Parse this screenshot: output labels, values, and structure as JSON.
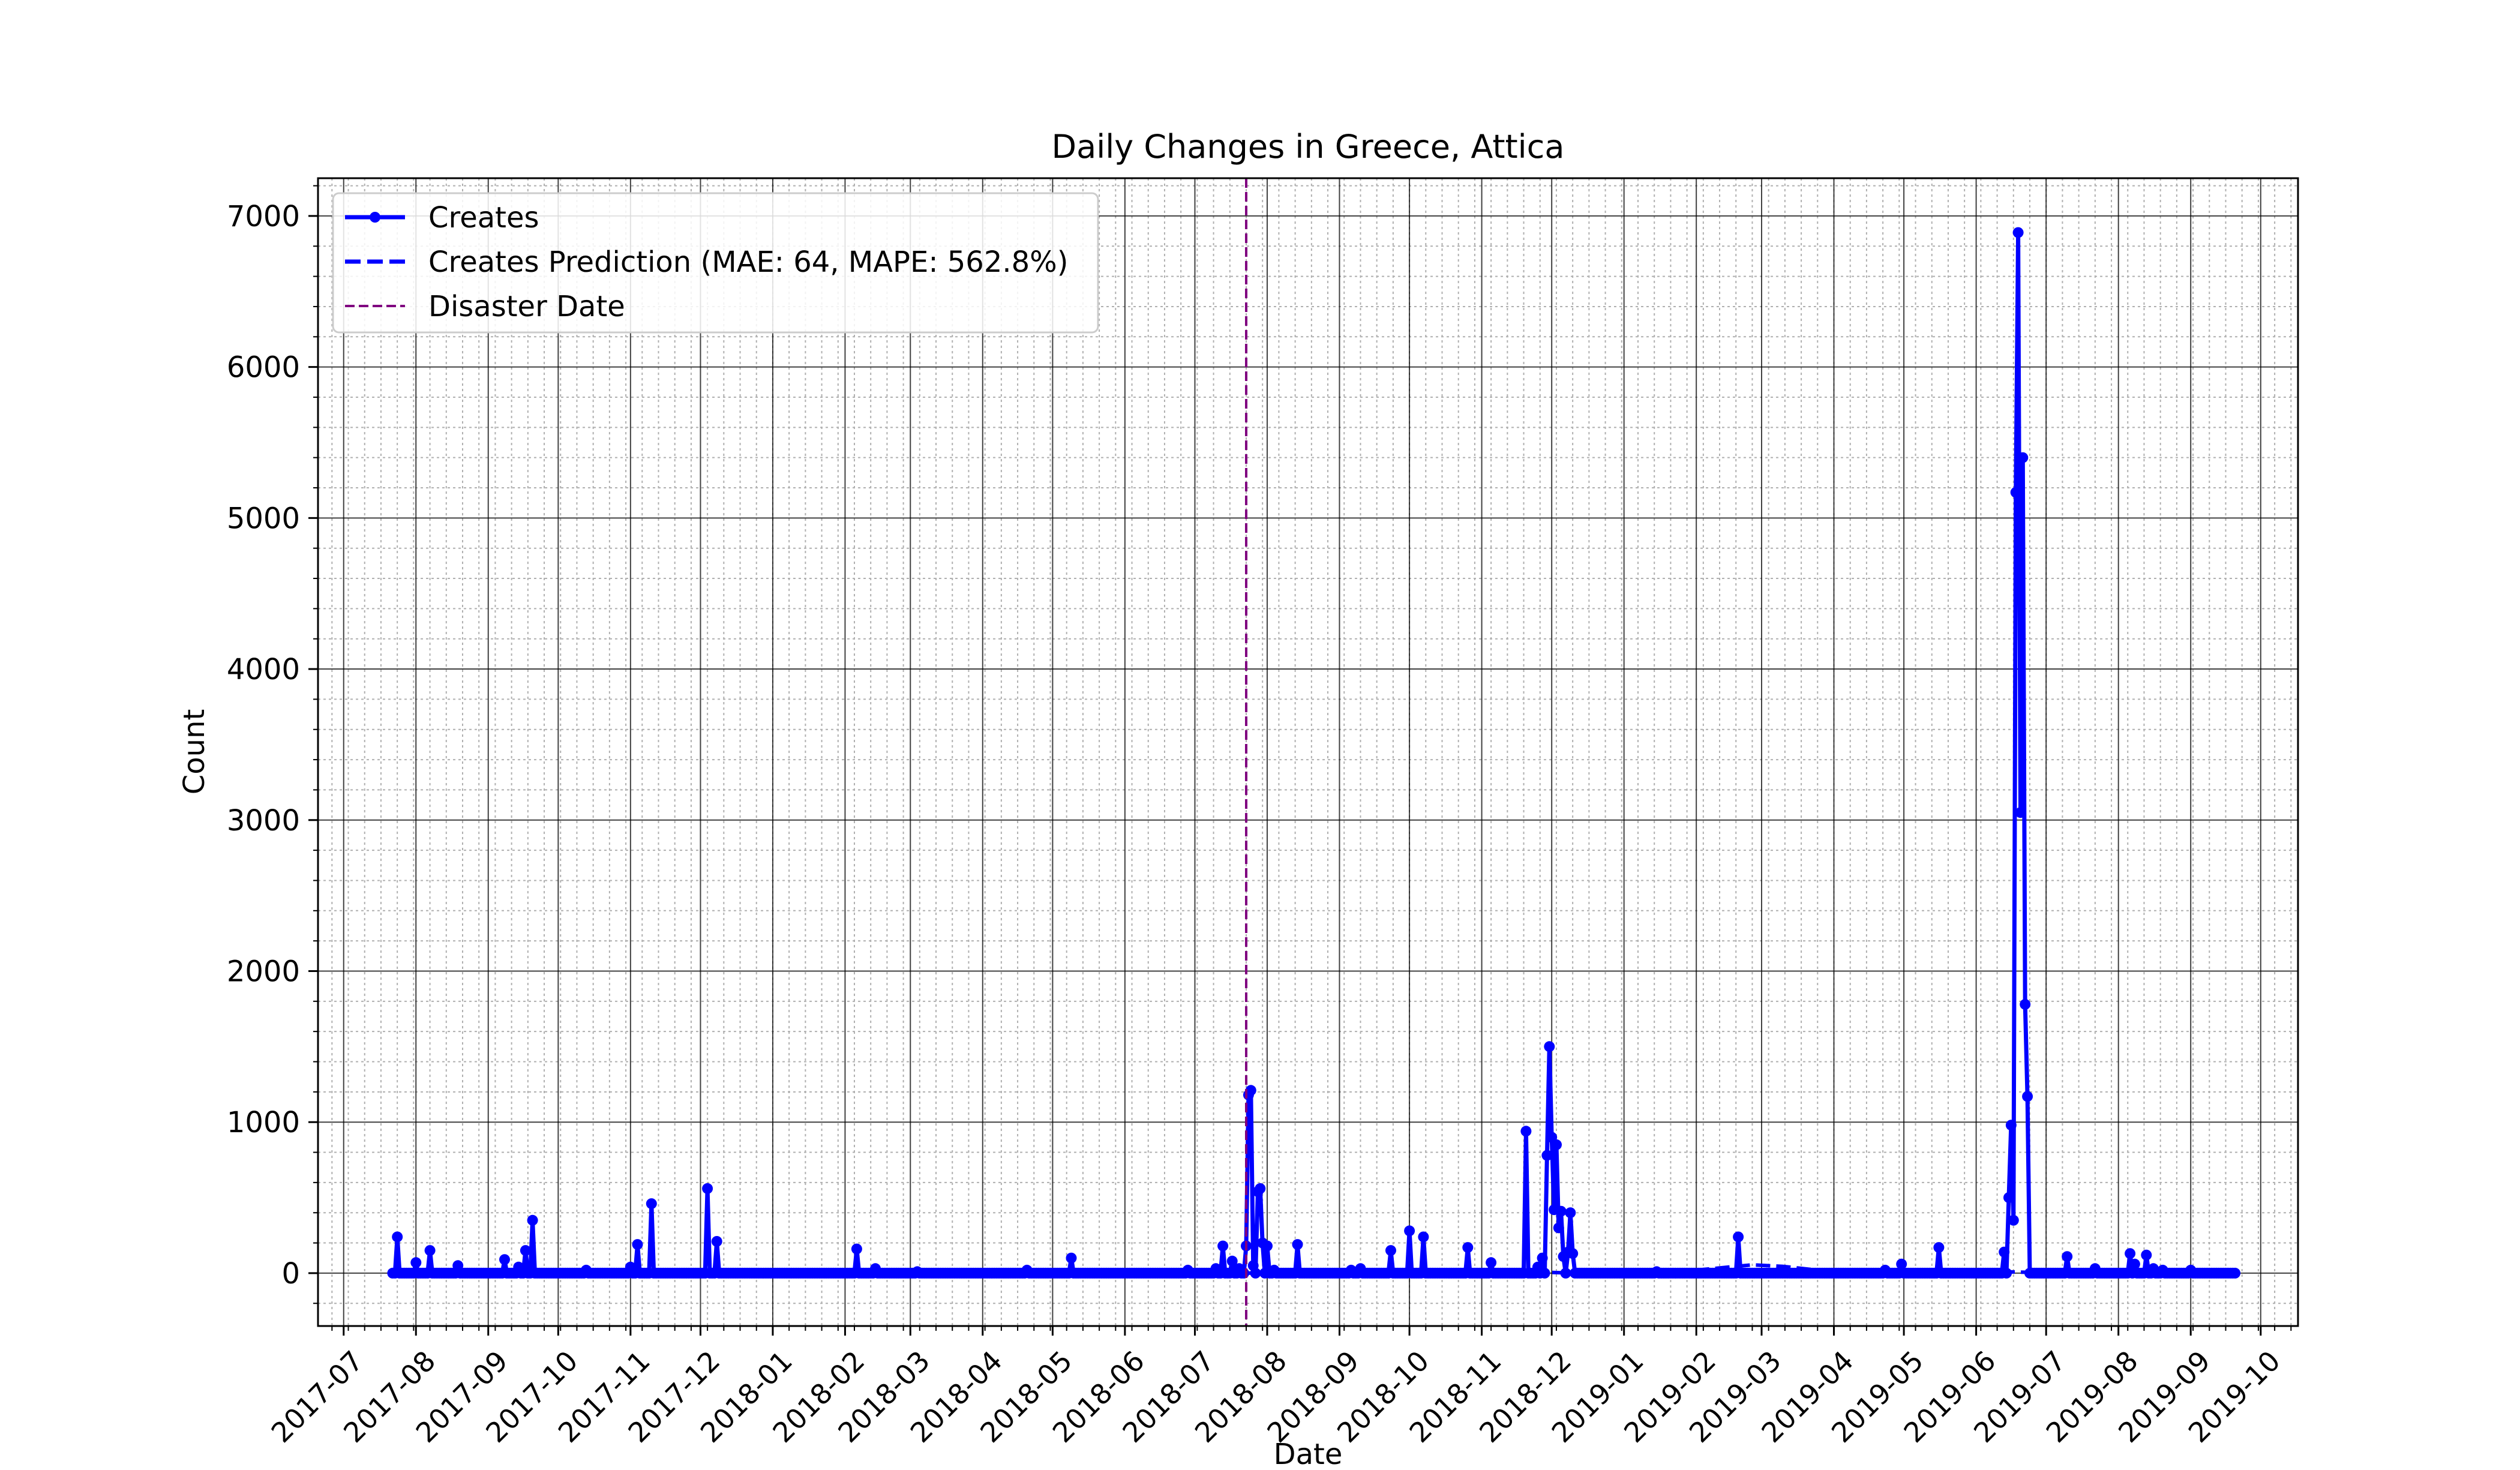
{
  "chart_data": {
    "type": "line",
    "title": "Daily Changes in Greece, Attica",
    "xlabel": "Date",
    "ylabel": "Count",
    "ylim": [
      -350,
      7250
    ],
    "xlim": [
      "2017-06-20",
      "2019-10-17"
    ],
    "yticks": [
      0,
      1000,
      2000,
      3000,
      4000,
      5000,
      6000,
      7000
    ],
    "xticks": [
      "2017-07",
      "2017-08",
      "2017-09",
      "2017-10",
      "2017-11",
      "2017-12",
      "2018-01",
      "2018-02",
      "2018-03",
      "2018-04",
      "2018-05",
      "2018-06",
      "2018-07",
      "2018-08",
      "2018-09",
      "2018-10",
      "2018-11",
      "2018-12",
      "2019-01",
      "2019-02",
      "2019-03",
      "2019-04",
      "2019-05",
      "2019-06",
      "2019-07",
      "2019-08",
      "2019-09",
      "2019-10"
    ],
    "grid": "major and minor",
    "legend_position": "upper left",
    "colors": {
      "series": "#0000ff",
      "disaster": "#800080",
      "grid_major": "#000000",
      "grid_minor": "#b0b0b0"
    },
    "series": [
      {
        "name": "Creates",
        "style": "solid line with dot markers",
        "range": [
          "2017-07-22",
          "2019-09-20"
        ],
        "baseline": 0,
        "points": [
          [
            "2017-07-24",
            240
          ],
          [
            "2017-08-01",
            70
          ],
          [
            "2017-08-07",
            150
          ],
          [
            "2017-08-19",
            50
          ],
          [
            "2017-09-08",
            90
          ],
          [
            "2017-09-14",
            40
          ],
          [
            "2017-09-17",
            150
          ],
          [
            "2017-09-20",
            350
          ],
          [
            "2017-10-13",
            20
          ],
          [
            "2017-11-01",
            40
          ],
          [
            "2017-11-04",
            190
          ],
          [
            "2017-11-10",
            460
          ],
          [
            "2017-12-04",
            560
          ],
          [
            "2017-12-08",
            210
          ],
          [
            "2018-02-06",
            160
          ],
          [
            "2018-02-14",
            30
          ],
          [
            "2018-03-04",
            10
          ],
          [
            "2018-04-20",
            20
          ],
          [
            "2018-05-09",
            100
          ],
          [
            "2018-06-28",
            20
          ],
          [
            "2018-07-10",
            30
          ],
          [
            "2018-07-13",
            180
          ],
          [
            "2018-07-17",
            80
          ],
          [
            "2018-07-20",
            30
          ],
          [
            "2018-07-23",
            180
          ],
          [
            "2018-07-24",
            1180
          ],
          [
            "2018-07-25",
            1210
          ],
          [
            "2018-07-26",
            50
          ],
          [
            "2018-07-28",
            540
          ],
          [
            "2018-07-29",
            560
          ],
          [
            "2018-07-30",
            200
          ],
          [
            "2018-08-01",
            180
          ],
          [
            "2018-08-04",
            20
          ],
          [
            "2018-08-14",
            190
          ],
          [
            "2018-09-06",
            20
          ],
          [
            "2018-09-10",
            30
          ],
          [
            "2018-09-23",
            150
          ],
          [
            "2018-10-01",
            280
          ],
          [
            "2018-10-07",
            240
          ],
          [
            "2018-10-26",
            170
          ],
          [
            "2018-11-05",
            70
          ],
          [
            "2018-11-20",
            940
          ],
          [
            "2018-11-25",
            40
          ],
          [
            "2018-11-27",
            100
          ],
          [
            "2018-11-29",
            780
          ],
          [
            "2018-11-30",
            1500
          ],
          [
            "2018-12-01",
            900
          ],
          [
            "2018-12-02",
            420
          ],
          [
            "2018-12-03",
            850
          ],
          [
            "2018-12-04",
            300
          ],
          [
            "2018-12-05",
            410
          ],
          [
            "2018-12-06",
            110
          ],
          [
            "2018-12-08",
            140
          ],
          [
            "2018-12-09",
            400
          ],
          [
            "2018-12-10",
            130
          ],
          [
            "2019-01-15",
            10
          ],
          [
            "2019-02-19",
            240
          ],
          [
            "2019-04-23",
            20
          ],
          [
            "2019-04-30",
            60
          ],
          [
            "2019-05-16",
            170
          ],
          [
            "2019-06-13",
            140
          ],
          [
            "2019-06-15",
            500
          ],
          [
            "2019-06-16",
            980
          ],
          [
            "2019-06-17",
            350
          ],
          [
            "2019-06-18",
            5170
          ],
          [
            "2019-06-19",
            6890
          ],
          [
            "2019-06-20",
            3050
          ],
          [
            "2019-06-21",
            5400
          ],
          [
            "2019-06-22",
            1780
          ],
          [
            "2019-06-23",
            1170
          ],
          [
            "2019-07-10",
            110
          ],
          [
            "2019-07-22",
            30
          ],
          [
            "2019-08-06",
            130
          ],
          [
            "2019-08-08",
            60
          ],
          [
            "2019-08-13",
            120
          ],
          [
            "2019-08-16",
            30
          ],
          [
            "2019-08-20",
            20
          ],
          [
            "2019-09-01",
            20
          ]
        ]
      },
      {
        "name": "Creates Prediction (MAE: 64, MAPE: 562.8%)",
        "style": "dashed",
        "range": [
          "2018-07-23",
          "2019-09-20"
        ],
        "points": [
          [
            "2018-07-23",
            0
          ],
          [
            "2018-08-20",
            5
          ],
          [
            "2018-09-20",
            12
          ],
          [
            "2018-10-15",
            15
          ],
          [
            "2018-11-15",
            12
          ],
          [
            "2018-12-11",
            0
          ],
          [
            "2019-02-01",
            20
          ],
          [
            "2019-02-25",
            55
          ],
          [
            "2019-03-10",
            45
          ],
          [
            "2019-03-25",
            20
          ],
          [
            "2019-04-20",
            15
          ],
          [
            "2019-05-20",
            10
          ],
          [
            "2019-06-10",
            10
          ],
          [
            "2019-06-24",
            5
          ],
          [
            "2019-07-20",
            20
          ],
          [
            "2019-08-20",
            15
          ],
          [
            "2019-09-20",
            5
          ]
        ]
      }
    ],
    "vline": {
      "name": "Disaster Date",
      "date": "2018-07-23",
      "style": "dashed"
    }
  }
}
